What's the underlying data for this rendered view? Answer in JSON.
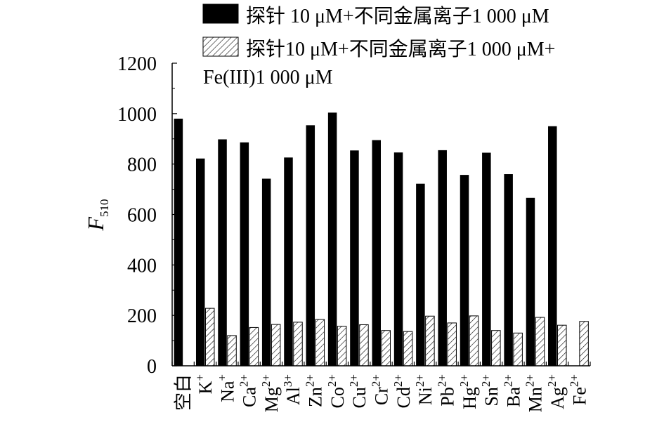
{
  "chart_data": {
    "type": "bar",
    "categories": [
      {
        "base": "空白",
        "sup": ""
      },
      {
        "base": "K",
        "sup": "+"
      },
      {
        "base": "Na",
        "sup": "+"
      },
      {
        "base": "Ca",
        "sup": "2+"
      },
      {
        "base": "Mg",
        "sup": "2+"
      },
      {
        "base": "Al",
        "sup": "3+"
      },
      {
        "base": "Zn",
        "sup": "2+"
      },
      {
        "base": "Co",
        "sup": "2+"
      },
      {
        "base": "Cu",
        "sup": "2+"
      },
      {
        "base": "Cr",
        "sup": "2+"
      },
      {
        "base": "Cd",
        "sup": "2+"
      },
      {
        "base": "Ni",
        "sup": "2+"
      },
      {
        "base": "Pb",
        "sup": "2+"
      },
      {
        "base": "Hg",
        "sup": "2+"
      },
      {
        "base": "Sn",
        "sup": "2+"
      },
      {
        "base": "Ba",
        "sup": "2+"
      },
      {
        "base": "Mn",
        "sup": "2+"
      },
      {
        "base": "Ag",
        "sup": "2+"
      },
      {
        "base": "Fe",
        "sup": "2+"
      }
    ],
    "series": [
      {
        "name": "探针 10 μM+不同金属离子1 000 μM",
        "pattern": "solid",
        "color": "#000000",
        "values": [
          980,
          822,
          898,
          886,
          742,
          826,
          954,
          1004,
          854,
          895,
          846,
          722,
          855,
          757,
          845,
          760,
          666,
          950,
          0
        ]
      },
      {
        "name": "探针10 μM+不同金属离子1 000 μM+\nFe(III)1 000 μM",
        "pattern": "hatch",
        "color": "#000000",
        "values": [
          0,
          228,
          120,
          152,
          164,
          173,
          184,
          157,
          163,
          140,
          136,
          197,
          170,
          198,
          140,
          130,
          192,
          161,
          176
        ]
      }
    ],
    "ylabel": {
      "main": "F",
      "sub": "510"
    },
    "xlabel": "",
    "ylim": [
      0,
      1200
    ],
    "yticks": [
      0,
      200,
      400,
      600,
      800,
      1000,
      1200
    ],
    "grid": false,
    "legend_position": "top"
  }
}
